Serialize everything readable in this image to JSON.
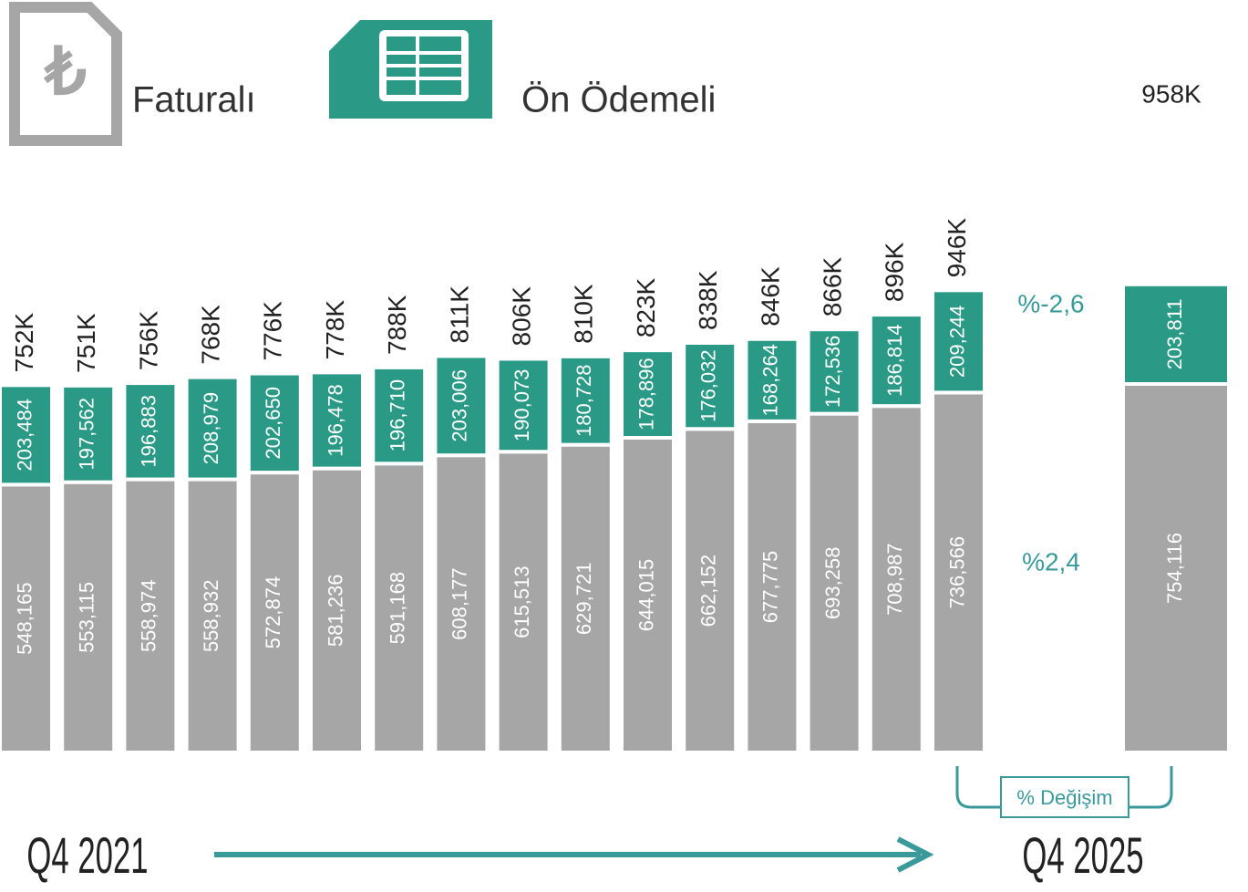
{
  "chart_data": {
    "type": "stacked_bar",
    "categories": [
      "Q4 2021",
      null,
      null,
      null,
      null,
      null,
      null,
      null,
      null,
      null,
      null,
      null,
      null,
      null,
      null,
      null,
      "Q4 2025"
    ],
    "series": [
      {
        "name": "Faturalı",
        "color": "#a6a6a6",
        "values": [
          548165,
          553115,
          558974,
          558932,
          572874,
          581236,
          591168,
          608177,
          615513,
          629721,
          644015,
          662152,
          677775,
          693258,
          708987,
          736566,
          754116
        ],
        "value_labels": [
          "548,165",
          "553,115",
          "558,974",
          "558,932",
          "572,874",
          "581,236",
          "591,168",
          "608,177",
          "615,513",
          "629,721",
          "644,015",
          "662,152",
          "677,775",
          "693,258",
          "708,987",
          "736,566",
          "754,116"
        ]
      },
      {
        "name": "Ön Ödemeli",
        "color": "#2a9a87",
        "values": [
          203484,
          197562,
          196883,
          208979,
          202650,
          196478,
          196710,
          203006,
          190073,
          180728,
          178896,
          176032,
          168264,
          172536,
          186814,
          209244,
          203811
        ],
        "value_labels": [
          "203,484",
          "197,562",
          "196,883",
          "208,979",
          "202,650",
          "196,478",
          "196,710",
          "203,006",
          "190,073",
          "180,728",
          "178,896",
          "176,032",
          "168,264",
          "172,536",
          "186,814",
          "209,244",
          "203,811"
        ]
      }
    ],
    "totals": {
      "values": [
        752000,
        751000,
        756000,
        768000,
        776000,
        778000,
        788000,
        811000,
        806000,
        810000,
        823000,
        838000,
        846000,
        866000,
        896000,
        946000,
        958000
      ],
      "value_labels": [
        "752K",
        "751K",
        "756K",
        "768K",
        "776K",
        "778K",
        "788K",
        "811K",
        "806K",
        "810K",
        "823K",
        "838K",
        "846K",
        "866K",
        "896K",
        "946K",
        "958K"
      ]
    },
    "annotations": {
      "prepaid_change": "%-2,6",
      "postpaid_change": "%2,4",
      "change_label": "% Değişim"
    },
    "ylim": [
      0,
      1540000
    ]
  }
}
